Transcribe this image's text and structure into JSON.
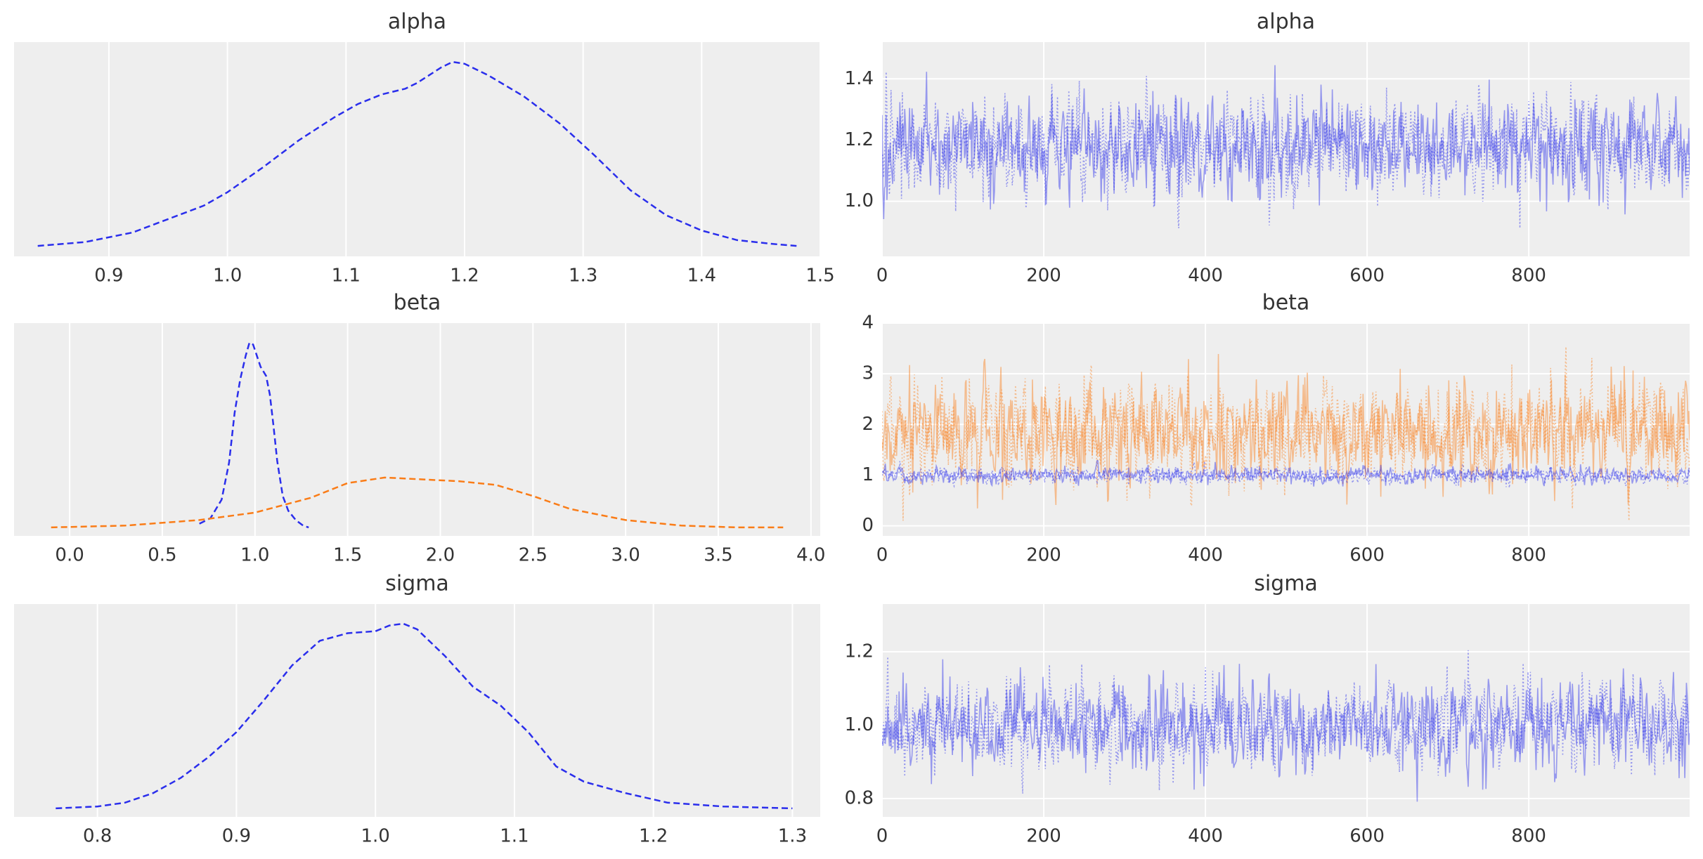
{
  "figure": {
    "background": "#ffffff",
    "panel_background": "#eeeeee",
    "grid_color": "#ffffff",
    "text_color": "#333333"
  },
  "chart_data": [
    {
      "type": "line",
      "title": "alpha",
      "xlabel": "",
      "ylabel": "",
      "xlim": [
        0.82,
        1.5
      ],
      "xticks": [
        "0.9",
        "1.0",
        "1.1",
        "1.2",
        "1.3",
        "1.4",
        "1.5"
      ],
      "yticks": [],
      "series": [
        {
          "color": "#2a2eec",
          "linestyle": "dashed",
          "x": [
            0.84,
            0.88,
            0.92,
            0.95,
            0.98,
            1.0,
            1.03,
            1.06,
            1.09,
            1.11,
            1.13,
            1.15,
            1.16,
            1.17,
            1.18,
            1.19,
            1.2,
            1.22,
            1.25,
            1.28,
            1.31,
            1.34,
            1.37,
            1.4,
            1.43,
            1.46,
            1.48
          ],
          "y": [
            0.01,
            0.03,
            0.08,
            0.15,
            0.22,
            0.29,
            0.42,
            0.56,
            0.68,
            0.75,
            0.8,
            0.83,
            0.86,
            0.9,
            0.94,
            0.97,
            0.96,
            0.9,
            0.79,
            0.65,
            0.48,
            0.3,
            0.17,
            0.09,
            0.04,
            0.02,
            0.01
          ]
        }
      ]
    },
    {
      "type": "line",
      "title": "alpha",
      "xlabel": "",
      "ylabel": "",
      "xlim": [
        0,
        999
      ],
      "ylim": [
        0.82,
        1.52
      ],
      "xticks": [
        "0",
        "200",
        "400",
        "600",
        "800"
      ],
      "yticks": [
        "1.0",
        "1.2",
        "1.4"
      ],
      "series": [
        {
          "color": "#2a2eec",
          "chain": 1,
          "linestyle": "solid",
          "alpha": 0.45,
          "mean": 1.18,
          "sd": 0.08,
          "min": 0.85,
          "max": 1.48
        },
        {
          "color": "#2a2eec",
          "chain": 2,
          "linestyle": "dotted",
          "alpha": 0.45,
          "mean": 1.18,
          "sd": 0.08,
          "min": 0.88,
          "max": 1.46
        }
      ]
    },
    {
      "type": "line",
      "title": "beta",
      "xlabel": "",
      "ylabel": "",
      "xlim": [
        -0.3,
        4.05
      ],
      "xticks": [
        "0.0",
        "0.5",
        "1.0",
        "1.5",
        "2.0",
        "2.5",
        "3.0",
        "3.5",
        "4.0"
      ],
      "yticks": [],
      "series": [
        {
          "color": "#2a2eec",
          "linestyle": "dashed",
          "x": [
            0.7,
            0.76,
            0.82,
            0.86,
            0.89,
            0.92,
            0.95,
            0.97,
            0.99,
            1.01,
            1.03,
            1.06,
            1.08,
            1.1,
            1.12,
            1.15,
            1.18,
            1.22,
            1.26,
            1.29
          ],
          "y": [
            0.02,
            0.05,
            0.15,
            0.35,
            0.62,
            0.8,
            0.93,
            1.0,
            0.99,
            0.93,
            0.87,
            0.82,
            0.72,
            0.55,
            0.36,
            0.17,
            0.09,
            0.04,
            0.01,
            0.0
          ]
        },
        {
          "color": "#fa7c17",
          "linestyle": "dashed",
          "x": [
            -0.1,
            0.3,
            0.7,
            1.0,
            1.3,
            1.5,
            1.7,
            1.9,
            2.1,
            2.3,
            2.5,
            2.7,
            3.0,
            3.3,
            3.6,
            3.85
          ],
          "y": [
            0.0,
            0.01,
            0.04,
            0.08,
            0.16,
            0.24,
            0.27,
            0.26,
            0.25,
            0.23,
            0.17,
            0.1,
            0.04,
            0.01,
            0.0,
            0.0
          ]
        }
      ]
    },
    {
      "type": "line",
      "title": "beta",
      "xlabel": "",
      "ylabel": "",
      "xlim": [
        0,
        999
      ],
      "ylim": [
        -0.2,
        4.0
      ],
      "xticks": [
        "0",
        "200",
        "400",
        "600",
        "800"
      ],
      "yticks": [
        "0",
        "1",
        "2",
        "3",
        "4"
      ],
      "series": [
        {
          "color": "#fa7c17",
          "chain": 1,
          "linestyle": "solid",
          "alpha": 0.45,
          "mean": 1.85,
          "sd": 0.5,
          "min": -0.1,
          "max": 3.85
        },
        {
          "color": "#fa7c17",
          "chain": 2,
          "linestyle": "dotted",
          "alpha": 0.45,
          "mean": 1.85,
          "sd": 0.5,
          "min": 0.1,
          "max": 3.6
        },
        {
          "color": "#2a2eec",
          "chain": 1,
          "linestyle": "solid",
          "alpha": 0.45,
          "mean": 1.0,
          "sd": 0.08,
          "min": 0.75,
          "max": 1.3
        },
        {
          "color": "#2a2eec",
          "chain": 2,
          "linestyle": "dotted",
          "alpha": 0.45,
          "mean": 1.0,
          "sd": 0.08,
          "min": 0.75,
          "max": 1.3
        }
      ]
    },
    {
      "type": "line",
      "title": "sigma",
      "xlabel": "",
      "ylabel": "",
      "xlim": [
        0.74,
        1.32
      ],
      "xticks": [
        "0.8",
        "0.9",
        "1.0",
        "1.1",
        "1.2",
        "1.3"
      ],
      "yticks": [],
      "series": [
        {
          "color": "#2a2eec",
          "linestyle": "dashed",
          "x": [
            0.77,
            0.8,
            0.82,
            0.84,
            0.86,
            0.88,
            0.9,
            0.92,
            0.94,
            0.96,
            0.98,
            1.0,
            1.01,
            1.02,
            1.03,
            1.05,
            1.07,
            1.09,
            1.11,
            1.13,
            1.15,
            1.18,
            1.21,
            1.25,
            1.3
          ],
          "y": [
            0.0,
            0.01,
            0.03,
            0.08,
            0.16,
            0.27,
            0.4,
            0.57,
            0.75,
            0.88,
            0.92,
            0.93,
            0.96,
            0.97,
            0.94,
            0.8,
            0.64,
            0.54,
            0.4,
            0.22,
            0.14,
            0.08,
            0.03,
            0.01,
            0.0
          ]
        }
      ]
    },
    {
      "type": "line",
      "title": "sigma",
      "xlabel": "",
      "ylabel": "",
      "xlim": [
        0,
        999
      ],
      "ylim": [
        0.75,
        1.33
      ],
      "xticks": [
        "0",
        "200",
        "400",
        "600",
        "800"
      ],
      "yticks": [
        "0.8",
        "1.0",
        "1.2"
      ],
      "series": [
        {
          "color": "#2a2eec",
          "chain": 1,
          "linestyle": "solid",
          "alpha": 0.45,
          "mean": 1.0,
          "sd": 0.06,
          "min": 0.77,
          "max": 1.24
        },
        {
          "color": "#2a2eec",
          "chain": 2,
          "linestyle": "dotted",
          "alpha": 0.45,
          "mean": 1.0,
          "sd": 0.06,
          "min": 0.81,
          "max": 1.3
        }
      ]
    }
  ]
}
